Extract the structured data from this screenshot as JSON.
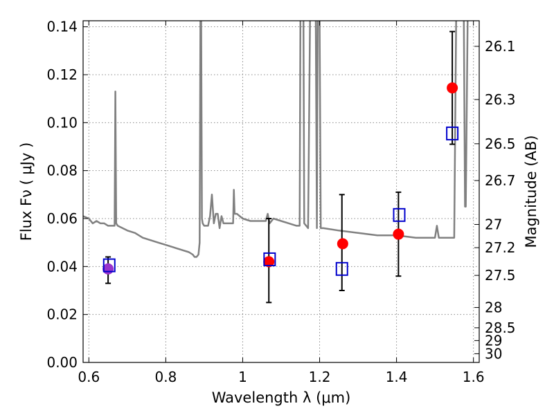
{
  "chart_data": {
    "type": "scatter",
    "title": "",
    "xlabel": "Wavelength  λ (μm)",
    "ylabel": "Flux  Fν  ( μJy )",
    "y2label": "Magnitude (AB)",
    "xlim": [
      0.585,
      1.615
    ],
    "ylim": [
      0.0,
      0.1425
    ],
    "grid": true,
    "x_ticks": [
      0.6,
      0.8,
      1.0,
      1.2,
      1.4,
      1.6
    ],
    "x_tick_labels": [
      "0.6",
      "0.8",
      "1",
      "1.2",
      "1.4",
      "1.6"
    ],
    "y_ticks": [
      0.0,
      0.02,
      0.04,
      0.06,
      0.08,
      0.1,
      0.12,
      0.14
    ],
    "y_tick_labels": [
      "0.00",
      "0.02",
      "0.04",
      "0.06",
      "0.08",
      "0.10",
      "0.12",
      "0.14"
    ],
    "mag_ticks": [
      26.1,
      26.3,
      26.5,
      26.7,
      27,
      27.2,
      27.5,
      28,
      28.5,
      29,
      30
    ],
    "mag_tick_labels": [
      "26.1",
      "26.3",
      "26.5",
      "26.7",
      "27",
      "27.2",
      "27.5",
      "28",
      "28.5",
      "29",
      "30"
    ],
    "colors": {
      "model": "#808080",
      "observed": "#ff0000",
      "observed_blended": "#9933cc",
      "model_band": "#0000cc",
      "errorbar": "#000000",
      "grid": "#888888"
    },
    "series": [
      {
        "style": "line",
        "x": [
          0.585,
          0.6,
          0.61,
          0.62,
          0.63,
          0.64,
          0.65,
          0.66,
          0.665,
          0.667,
          0.669,
          0.671,
          0.675,
          0.7,
          0.72,
          0.74,
          0.76,
          0.78,
          0.8,
          0.82,
          0.84,
          0.86,
          0.87,
          0.875,
          0.88,
          0.885,
          0.888,
          0.89,
          0.892,
          0.894,
          0.896,
          0.9,
          0.91,
          0.915,
          0.92,
          0.925,
          0.93,
          0.935,
          0.94,
          0.945,
          0.95,
          0.955,
          0.96,
          0.965,
          0.97,
          0.975,
          0.977,
          0.979,
          0.985,
          1.0,
          1.02,
          1.04,
          1.06,
          1.065,
          1.07,
          1.08,
          1.1,
          1.12,
          1.14,
          1.148,
          1.15,
          1.152,
          1.155,
          1.158,
          1.16,
          1.165,
          1.17,
          1.175,
          1.18,
          1.185,
          1.19,
          1.193,
          1.195,
          1.2,
          1.203,
          1.21,
          1.25,
          1.3,
          1.35,
          1.4,
          1.45,
          1.5,
          1.505,
          1.51,
          1.52,
          1.55,
          1.555,
          1.558,
          1.56,
          1.565,
          1.57,
          1.575,
          1.578,
          1.58,
          1.585,
          1.59,
          1.6,
          1.605,
          1.615
        ],
        "y": [
          0.061,
          0.06,
          0.058,
          0.059,
          0.058,
          0.058,
          0.057,
          0.057,
          0.057,
          0.057,
          0.113,
          0.058,
          0.057,
          0.055,
          0.054,
          0.052,
          0.051,
          0.05,
          0.049,
          0.048,
          0.047,
          0.046,
          0.045,
          0.044,
          0.044,
          0.045,
          0.05,
          0.143,
          0.143,
          0.06,
          0.058,
          0.057,
          0.057,
          0.061,
          0.07,
          0.058,
          0.062,
          0.062,
          0.056,
          0.061,
          0.058,
          0.058,
          0.058,
          0.058,
          0.058,
          0.058,
          0.072,
          0.062,
          0.062,
          0.06,
          0.059,
          0.059,
          0.059,
          0.062,
          0.058,
          0.06,
          0.059,
          0.058,
          0.057,
          0.057,
          0.143,
          0.143,
          0.143,
          0.143,
          0.058,
          0.057,
          0.056,
          0.143,
          0.143,
          0.143,
          0.143,
          0.056,
          0.143,
          0.143,
          0.056,
          0.056,
          0.055,
          0.054,
          0.053,
          0.053,
          0.052,
          0.052,
          0.057,
          0.052,
          0.052,
          0.052,
          0.143,
          0.143,
          0.143,
          0.143,
          0.143,
          0.143,
          0.065,
          0.065,
          0.143,
          0.143,
          0.143,
          0.143,
          0.143
        ]
      },
      {
        "style": "errorbar",
        "x": [
          0.65,
          1.068,
          1.258,
          1.405,
          1.545
        ],
        "low": [
          0.033,
          0.025,
          0.03,
          0.036,
          0.091
        ],
        "high": [
          0.044,
          0.06,
          0.07,
          0.071,
          0.138
        ]
      },
      {
        "style": "circle",
        "x": [
          0.65,
          1.068,
          1.26,
          1.405,
          1.545
        ],
        "y": [
          0.039,
          0.042,
          0.0495,
          0.0535,
          0.1145
        ],
        "fills": [
          "#9933cc",
          "#ff0000",
          "#ff0000",
          "#ff0000",
          "#ff0000"
        ]
      },
      {
        "style": "open-square",
        "x": [
          0.653,
          1.07,
          1.258,
          1.407,
          1.545
        ],
        "y": [
          0.0405,
          0.043,
          0.039,
          0.0615,
          0.0955
        ]
      }
    ]
  }
}
